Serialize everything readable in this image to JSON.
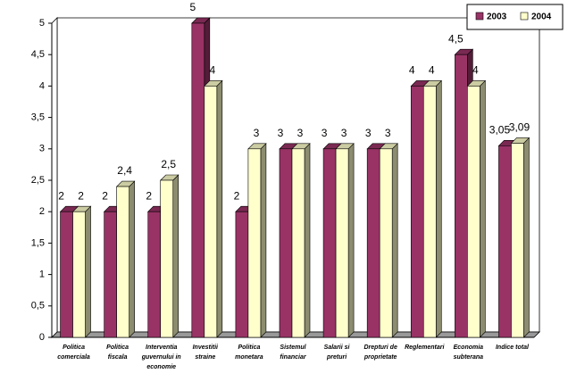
{
  "chart_data": {
    "type": "bar3d",
    "categories": [
      "Politica comerciala",
      "Politica fiscala",
      "Interventia guvernului in economie",
      "Investitii straine",
      "Politica monetara",
      "Sistemul financiar",
      "Salarii si preturi",
      "Drepturi de proprietate",
      "Reglementari",
      "Economia subterana",
      "Indice total"
    ],
    "series": [
      {
        "name": "2003",
        "color": "#993366",
        "values": [
          2,
          2,
          2,
          5,
          2,
          3,
          3,
          3,
          4,
          4.5,
          3.05
        ],
        "value_labels": [
          "2",
          "2",
          "2",
          "5",
          "2",
          "3",
          "3",
          "3",
          "4",
          "4,5",
          "3,05"
        ]
      },
      {
        "name": "2004",
        "color": "#ffffcc",
        "values": [
          2,
          2.4,
          2.5,
          4,
          3,
          3,
          3,
          3,
          4,
          4,
          3.09
        ],
        "value_labels": [
          "2",
          "2,4",
          "2,5",
          "4",
          "3",
          "3",
          "3",
          "3",
          "4",
          "4",
          "3,09"
        ]
      }
    ],
    "ylim": [
      0,
      5
    ],
    "yticks": [
      0,
      {
        "value": 0.5,
        "label": "0,5"
      },
      1,
      {
        "value": 1.5,
        "label": "1,5"
      },
      2,
      {
        "value": 2.5,
        "label": "2,5"
      },
      3,
      {
        "value": 3.5,
        "label": "3,5"
      },
      4,
      {
        "value": 4.5,
        "label": "4,5"
      },
      5
    ],
    "legend": "top-right"
  }
}
